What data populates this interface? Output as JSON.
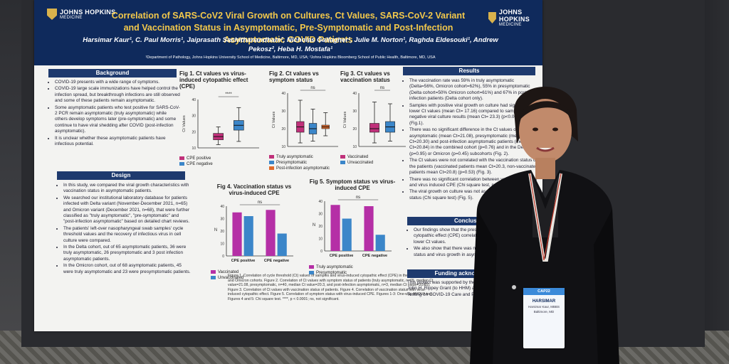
{
  "poster": {
    "logo_left": "JOHNS HOPKINS",
    "logo_left_sub": "MEDICINE",
    "logo_right": "JOHNS HOPKINS",
    "logo_right_sub": "MEDICINE",
    "title": "Correlation of SARS-CoV2 Viral Growth on Cultures, Ct Values, SARS-CoV-2 Variant and Vaccination Status in Asymptomatic, Pre-Symptomatic and Post-Infection Asymptomatic COVID Patients",
    "authors": "Harsimar Kaur¹, C. Paul Morris¹, Jaiprasath Sachithanandham², Nicholas Gallagher¹, Julie M. Norton¹, Raghda Eldesouki¹, Andrew Pekosz², Heba H. Mostafa¹",
    "affiliations": "¹Department of Pathology, Johns Hopkins University School of Medicine, Baltimore, MD, USA; ²Johns Hopkins Bloomberg School of Public Health, Baltimore, MD, USA",
    "sections": {
      "background": {
        "heading": "Background",
        "bullets": [
          "COVID-19 presents with a wide range of symptoms.",
          "COVID-19 large scale immunizations have helped control the infection spread, but breakthrough infections are still observed and some of these patients remain asymptomatic.",
          "Some asymptomatic patients who test positive for SARS-CoV-2 PCR remain asymptomatic (truly asymptomatic) while others develop symptoms later (pre-symptomatic) and some continue to have viral shedding after COVID (post-infection asymptomatic).",
          "It is unclear whether these asymptomatic patients have infectious potential."
        ]
      },
      "design": {
        "heading": "Design",
        "bullets": [
          "In this study, we compared the viral growth characteristics with vaccination status in asymptomatic patients.",
          "We searched our institutional laboratory database for patients infected with Delta variant (November-December 2021, n=65) and Omicron variant (December 2021, n=68), that were further classified as \"truly asymptomatic\", \"pre-symptomatic\" and \"post-infection asymptomatic\" based on detailed chart reviews.",
          "The patients' left-over nasopharyngeal swab samples' cycle threshold values and the recovery of infectious virus in cell culture were compared.",
          "In the Delta cohort, out of 65 asymptomatic patients, 36 were truly asymptomatic, 26 presymptomatic and 3 post infection asymptomatic patients.",
          "In the Omicron cohort, out of 68 asymptomatic patients, 45 were truly asymptomatic and 23 were presymptomatic patients."
        ]
      },
      "results": {
        "heading": "Results",
        "bullets": [
          "The vaccination rate was 59% in truly asymptomatic (Delta=56%, Omicron cohort=62%), 55% in presymptomatic (Delta cohort=50% Omicron cohort=61%) and 67% in post infection patients (Delta cohort only).",
          "Samples with positive viral growth on culture had significantly lower Ct values (mean Ct= 17.16) compared to samples with negative viral culture results (mean Ct= 23.3) (p<0.0001) (Fig.1).",
          "There was no significant difference in the Ct values of truly asymptomatic (mean Ct=21.08), presymptomatic (mean Ct=20.30) and post-infection asymptomatic patients (mean Ct=20.84) in the combined cohort (p=0.76) and in the Delta (p=0.95) or Omicron (p=0.45) subcohorts (Fig. 2).",
          "The Ct values were not correlated with the vaccination status of the patients (vaccinated patients mean Ct=20.3, non-vaccinated patients mean Ct=20.8) (p=0.53) (Fig. 3).",
          "There was no significant correlation between vaccination status and virus induced CPE (Chi square test, p=0.109) (Fig. 4).",
          "The viral growth on culture was not associated with symptom status (Chi square test) (Fig. 5)."
        ]
      },
      "conclusions": {
        "heading": "Conclusions",
        "bullets": [
          "Our findings show that the presence of virus induced cytopathic effect (CPE) correlated with showing significantly lower Ct values.",
          "We also show that there was no correlation with vaccination status and virus growth in asymptomatic patients."
        ]
      },
      "funding": {
        "heading": "Funding acknowledgement",
        "text": "This project was supported by the Johns Hopkins Foundation John H. Rippey Grant (to HHM) and The Impact of Laboratory Testing on COVID-19 Care and Patient Safety\""
      }
    },
    "figures": {
      "fig1": {
        "title": "Fig 1. Ct values vs virus-induced cytopathic effect (CPE)",
        "ylabel": "Ct Values",
        "sig": "****",
        "legend": [
          "CPE positive",
          "CPE negative"
        ],
        "colors": [
          "#c0307a",
          "#3b86c9"
        ]
      },
      "fig2": {
        "title": "Fig 2. Ct values vs symptom status",
        "ylabel": "Ct Values",
        "sig": "ns",
        "legend": [
          "Truly asymptomatic",
          "Presymptomatic",
          "Post-infection asymptomatic"
        ],
        "colors": [
          "#c0307a",
          "#3b86c9",
          "#e06a2b"
        ]
      },
      "fig3": {
        "title": "Fig 3. Ct values vs vaccination status",
        "ylabel": "Ct Values",
        "sig": "ns",
        "legend": [
          "Vaccinated",
          "Unvaccinated"
        ],
        "colors": [
          "#c0307a",
          "#3b86c9"
        ]
      },
      "fig4": {
        "title": "Fig 4. Vaccination status vs virus-induced CPE",
        "ylabel": "N",
        "sig": "ns",
        "categories": [
          "CPE positive",
          "CPE negative"
        ],
        "legend": [
          "Vaccinated",
          "Unvaccinated"
        ],
        "colors": [
          "#b52fa6",
          "#3b86c9"
        ]
      },
      "fig5": {
        "title": "Fig 5. Symptom status vs virus-induced CPE",
        "ylabel": "N",
        "sig": "ns",
        "categories": [
          "CPE positive",
          "CPE negative"
        ],
        "legend": [
          "Truly asymptomatic",
          "Presymptomatic"
        ],
        "colors": [
          "#b52fa6",
          "#3b86c9"
        ]
      }
    },
    "caption": "Figure 1. Correlation of cycle threshold (Ct) values of samples and virus-induced cytopathic effect (CPE) in the combined Delta and Omicron cohorts. Figure 2. Correlation of Ct values with symptom status of patients (truly asymptomatic, n=65, median Ct value=21.08, presymptomatic, n=40, median Ct value=20.3, and post-infection asymptomatic, n=3, median Ct value=20.85). Figure 3. Correlation of Ct values with vaccination status of patients. Figure 4. Correlation of vaccination status with virus-induced cytopathic effect. Figure 5. Correlation of symptom status with virus-induced CPE. Figures 1-3: One-way ANOVA test. Figures 4 and 5: Chi square test. ****, p < 0.0001; ns, not significant."
  },
  "badge": {
    "header": "CAP22",
    "name": "HARSIMAR",
    "surname": "Harsimar Kaur, MBBS",
    "city": "Baltimore, MD"
  },
  "chart_data": [
    {
      "type": "box",
      "title": "Fig 1. Ct values vs virus-induced cytopathic effect (CPE)",
      "ylabel": "Ct Values",
      "ylim": [
        10,
        40
      ],
      "categories": [
        "CPE positive",
        "CPE negative"
      ],
      "boxes": [
        {
          "min": 12,
          "q1": 15,
          "median": 17,
          "q3": 19,
          "max": 23
        },
        {
          "min": 14,
          "q1": 21,
          "median": 24,
          "q3": 27,
          "max": 35
        }
      ]
    },
    {
      "type": "box",
      "title": "Fig 2. Ct values vs symptom status",
      "ylabel": "Ct Values",
      "ylim": [
        10,
        40
      ],
      "categories": [
        "Truly asymptomatic",
        "Presymptomatic",
        "Post-infection asymptomatic"
      ],
      "boxes": [
        {
          "min": 12,
          "q1": 18,
          "median": 21,
          "q3": 24,
          "max": 36
        },
        {
          "min": 13,
          "q1": 17,
          "median": 20,
          "q3": 23,
          "max": 31
        },
        {
          "min": 16,
          "q1": 20,
          "median": 21,
          "q3": 22,
          "max": 29
        }
      ]
    },
    {
      "type": "box",
      "title": "Fig 3. Ct values vs vaccination status",
      "ylabel": "Ct Values",
      "ylim": [
        10,
        40
      ],
      "categories": [
        "Vaccinated",
        "Unvaccinated"
      ],
      "boxes": [
        {
          "min": 12,
          "q1": 18,
          "median": 20,
          "q3": 23,
          "max": 35
        },
        {
          "min": 13,
          "q1": 18,
          "median": 21,
          "q3": 24,
          "max": 34
        }
      ]
    },
    {
      "type": "bar",
      "title": "Fig 4. Vaccination status vs virus-induced CPE",
      "ylabel": "N",
      "ylim": [
        0,
        40
      ],
      "categories": [
        "CPE positive",
        "CPE negative"
      ],
      "series": [
        {
          "name": "Vaccinated",
          "values": [
            35,
            37
          ]
        },
        {
          "name": "Unvaccinated",
          "values": [
            32,
            18
          ]
        }
      ]
    },
    {
      "type": "bar",
      "title": "Fig 5. Symptom status vs virus-induced CPE",
      "ylabel": "N",
      "ylim": [
        0,
        40
      ],
      "categories": [
        "CPE positive",
        "CPE negative"
      ],
      "series": [
        {
          "name": "Truly asymptomatic",
          "values": [
            37,
            36
          ]
        },
        {
          "name": "Presymptomatic",
          "values": [
            26,
            13
          ]
        }
      ]
    }
  ]
}
